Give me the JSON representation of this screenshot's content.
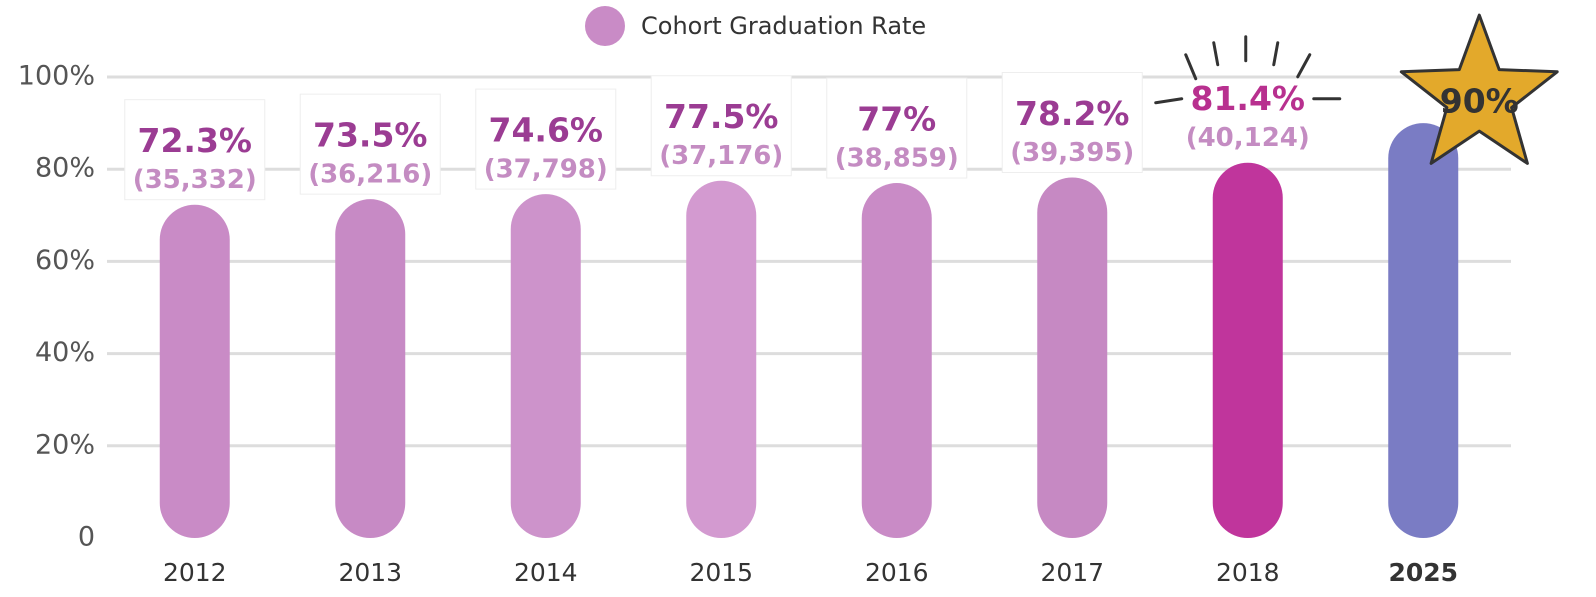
{
  "chart_data": {
    "type": "bar",
    "categories": [
      "2012",
      "2013",
      "2014",
      "2015",
      "2016",
      "2017",
      "2018",
      "2025"
    ],
    "series": [
      {
        "name": "Cohort Graduation Rate",
        "color": "#c98bc6",
        "values": [
          72.3,
          73.5,
          74.6,
          77.5,
          77,
          78.2,
          81.4,
          90
        ],
        "value_labels": [
          "72.3%",
          "73.5%",
          "74.6%",
          "77.5%",
          "77%",
          "78.2%",
          "81.4%",
          "90%"
        ],
        "count_labels": [
          "(35,332)",
          "(36,216)",
          "(37,798)",
          "(37,176)",
          "(38,859)",
          "(39,395)",
          "(40,124)",
          null
        ],
        "colors": [
          "#c98bc6",
          "#c78ac5",
          "#cd93cb",
          "#d39ad0",
          "#c98bc6",
          "#c689c3",
          "#c0359c",
          "#7a7cc4"
        ]
      }
    ],
    "ylim": [
      0,
      100
    ],
    "yticks": [
      0,
      {
        "value": 20,
        "label": "20%"
      },
      {
        "value": 40,
        "label": "40%"
      },
      {
        "value": 60,
        "label": "60%"
      },
      {
        "value": 80,
        "label": "80%"
      },
      {
        "value": 100,
        "label": "100%"
      }
    ],
    "grid": true
  }
}
